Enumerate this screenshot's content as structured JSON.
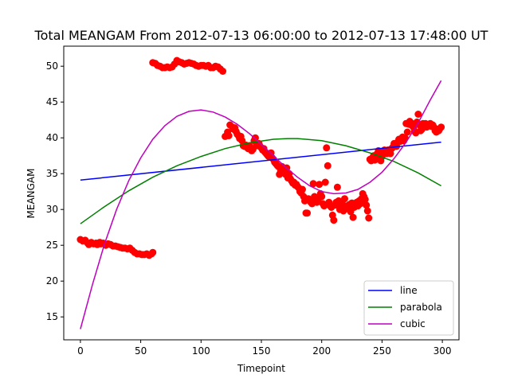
{
  "chart_data": {
    "type": "scatter",
    "title": "Total MEANGAM From 2012-07-13 06:00:00 to 2012-07-13 17:48:00 UT",
    "xlabel": "Timepoint",
    "ylabel": "MEANGAM",
    "xlim": [
      -13.8,
      313.8
    ],
    "ylim": [
      11.8,
      52.8
    ],
    "xticks": [
      0,
      50,
      100,
      150,
      200,
      250,
      300
    ],
    "yticks": [
      15,
      20,
      25,
      30,
      35,
      40,
      45,
      50
    ],
    "grid": false,
    "legend_position": "lower right",
    "points_color": "#ff0000",
    "scatter_points": [
      [
        0,
        25.8
      ],
      [
        2,
        25.6
      ],
      [
        4,
        25.7
      ],
      [
        6,
        25.3
      ],
      [
        7,
        25.1
      ],
      [
        9,
        25.4
      ],
      [
        11,
        25.2
      ],
      [
        13,
        25.3
      ],
      [
        14,
        25.1
      ],
      [
        16,
        25.4
      ],
      [
        17,
        25.2
      ],
      [
        19,
        25.3
      ],
      [
        21,
        25.0
      ],
      [
        23,
        25.2
      ],
      [
        25,
        25.1
      ],
      [
        27,
        24.9
      ],
      [
        29,
        24.9
      ],
      [
        31,
        24.8
      ],
      [
        33,
        24.7
      ],
      [
        35,
        24.6
      ],
      [
        37,
        24.6
      ],
      [
        39,
        24.5
      ],
      [
        41,
        24.6
      ],
      [
        43,
        24.3
      ],
      [
        45,
        24.0
      ],
      [
        47,
        23.8
      ],
      [
        49,
        23.8
      ],
      [
        51,
        23.7
      ],
      [
        53,
        23.7
      ],
      [
        55,
        23.8
      ],
      [
        57,
        23.6
      ],
      [
        59,
        23.8
      ],
      [
        60,
        24.0
      ],
      [
        60,
        50.5
      ],
      [
        62,
        50.4
      ],
      [
        64,
        50.1
      ],
      [
        66,
        50.0
      ],
      [
        68,
        49.8
      ],
      [
        70,
        49.8
      ],
      [
        72,
        49.9
      ],
      [
        74,
        49.8
      ],
      [
        76,
        49.9
      ],
      [
        78,
        50.3
      ],
      [
        80,
        50.8
      ],
      [
        82,
        50.6
      ],
      [
        84,
        50.5
      ],
      [
        86,
        50.3
      ],
      [
        88,
        50.4
      ],
      [
        90,
        50.5
      ],
      [
        92,
        50.4
      ],
      [
        94,
        50.3
      ],
      [
        96,
        50.1
      ],
      [
        98,
        50.0
      ],
      [
        100,
        50.1
      ],
      [
        102,
        50.1
      ],
      [
        104,
        50.0
      ],
      [
        106,
        50.1
      ],
      [
        108,
        49.8
      ],
      [
        110,
        49.8
      ],
      [
        112,
        50.0
      ],
      [
        114,
        49.9
      ],
      [
        116,
        49.6
      ],
      [
        118,
        49.3
      ],
      [
        120,
        40.2
      ],
      [
        122,
        40.8
      ],
      [
        123,
        40.3
      ],
      [
        124,
        41.8
      ],
      [
        126,
        41.5
      ],
      [
        127,
        41.2
      ],
      [
        128,
        41.4
      ],
      [
        129,
        40.9
      ],
      [
        130,
        40.5
      ],
      [
        131,
        40.3
      ],
      [
        132,
        39.9
      ],
      [
        133,
        40.2
      ],
      [
        134,
        39.6
      ],
      [
        135,
        38.9
      ],
      [
        136,
        38.8
      ],
      [
        137,
        39.0
      ],
      [
        138,
        38.7
      ],
      [
        139,
        38.5
      ],
      [
        140,
        38.9
      ],
      [
        141,
        38.6
      ],
      [
        142,
        38.2
      ],
      [
        143,
        38.4
      ],
      [
        144,
        39.6
      ],
      [
        145,
        40.0
      ],
      [
        146,
        39.0
      ],
      [
        147,
        38.9
      ],
      [
        148,
        39.2
      ],
      [
        149,
        38.8
      ],
      [
        150,
        38.6
      ],
      [
        151,
        38.3
      ],
      [
        152,
        38.5
      ],
      [
        153,
        38.0
      ],
      [
        154,
        37.8
      ],
      [
        155,
        37.6
      ],
      [
        156,
        37.4
      ],
      [
        157,
        37.7
      ],
      [
        158,
        37.9
      ],
      [
        159,
        37.2
      ],
      [
        160,
        37.0
      ],
      [
        161,
        36.6
      ],
      [
        162,
        36.4
      ],
      [
        163,
        36.2
      ],
      [
        164,
        36.0
      ],
      [
        165,
        34.9
      ],
      [
        166,
        35.3
      ],
      [
        167,
        36.0
      ],
      [
        168,
        35.6
      ],
      [
        169,
        35.1
      ],
      [
        170,
        34.9
      ],
      [
        171,
        35.8
      ],
      [
        172,
        34.4
      ],
      [
        173,
        35.0
      ],
      [
        174,
        34.3
      ],
      [
        175,
        34.0
      ],
      [
        176,
        33.7
      ],
      [
        177,
        33.8
      ],
      [
        178,
        33.4
      ],
      [
        179,
        33.5
      ],
      [
        180,
        33.2
      ],
      [
        181,
        33.0
      ],
      [
        182,
        32.5
      ],
      [
        183,
        32.3
      ],
      [
        184,
        32.8
      ],
      [
        185,
        31.8
      ],
      [
        186,
        31.2
      ],
      [
        187,
        29.5
      ],
      [
        188,
        29.5
      ],
      [
        189,
        31.5
      ],
      [
        190,
        31.3
      ],
      [
        191,
        31.0
      ],
      [
        192,
        30.8
      ],
      [
        193,
        33.6
      ],
      [
        194,
        31.8
      ],
      [
        195,
        31.5
      ],
      [
        196,
        31.0
      ],
      [
        197,
        31.2
      ],
      [
        198,
        33.5
      ],
      [
        199,
        32.2
      ],
      [
        200,
        31.8
      ],
      [
        201,
        30.8
      ],
      [
        202,
        30.5
      ],
      [
        203,
        33.8
      ],
      [
        204,
        38.6
      ],
      [
        205,
        36.1
      ],
      [
        206,
        31.0
      ],
      [
        207,
        30.5
      ],
      [
        208,
        30.3
      ],
      [
        209,
        29.2
      ],
      [
        210,
        28.5
      ],
      [
        211,
        30.6
      ],
      [
        212,
        31.0
      ],
      [
        213,
        33.1
      ],
      [
        214,
        31.2
      ],
      [
        215,
        30.0
      ],
      [
        216,
        30.4
      ],
      [
        217,
        30.8
      ],
      [
        218,
        29.8
      ],
      [
        219,
        31.5
      ],
      [
        220,
        30.2
      ],
      [
        221,
        30.5
      ],
      [
        222,
        30.1
      ],
      [
        223,
        30.7
      ],
      [
        224,
        29.7
      ],
      [
        225,
        30.9
      ],
      [
        226,
        28.9
      ],
      [
        227,
        30.3
      ],
      [
        228,
        30.6
      ],
      [
        229,
        31.0
      ],
      [
        230,
        30.5
      ],
      [
        231,
        31.2
      ],
      [
        232,
        30.8
      ],
      [
        233,
        31.5
      ],
      [
        234,
        32.2
      ],
      [
        235,
        31.8
      ],
      [
        236,
        31.4
      ],
      [
        237,
        30.6
      ],
      [
        238,
        29.8
      ],
      [
        239,
        28.8
      ],
      [
        240,
        37.0
      ],
      [
        241,
        36.8
      ],
      [
        242,
        37.2
      ],
      [
        243,
        37.5
      ],
      [
        244,
        36.9
      ],
      [
        245,
        37.0
      ],
      [
        246,
        37.8
      ],
      [
        247,
        38.2
      ],
      [
        248,
        37.6
      ],
      [
        249,
        36.8
      ],
      [
        250,
        37.4
      ],
      [
        251,
        38.0
      ],
      [
        252,
        38.3
      ],
      [
        253,
        38.0
      ],
      [
        254,
        37.8
      ],
      [
        255,
        38.3
      ],
      [
        256,
        38.0
      ],
      [
        257,
        37.8
      ],
      [
        258,
        38.5
      ],
      [
        259,
        38.7
      ],
      [
        260,
        39.2
      ],
      [
        261,
        39.0
      ],
      [
        262,
        38.8
      ],
      [
        263,
        39.4
      ],
      [
        264,
        39.8
      ],
      [
        265,
        39.5
      ],
      [
        266,
        39.9
      ],
      [
        267,
        40.1
      ],
      [
        268,
        39.6
      ],
      [
        269,
        40.0
      ],
      [
        270,
        42.0
      ],
      [
        271,
        40.8
      ],
      [
        272,
        41.9
      ],
      [
        273,
        42.3
      ],
      [
        274,
        41.8
      ],
      [
        275,
        42.0
      ],
      [
        276,
        41.5
      ],
      [
        277,
        40.9
      ],
      [
        278,
        40.7
      ],
      [
        279,
        42.2
      ],
      [
        280,
        43.3
      ],
      [
        281,
        41.8
      ],
      [
        282,
        41.0
      ],
      [
        283,
        41.2
      ],
      [
        284,
        42.0
      ],
      [
        285,
        41.6
      ],
      [
        286,
        42.0
      ],
      [
        287,
        41.5
      ],
      [
        288,
        41.7
      ],
      [
        289,
        41.9
      ],
      [
        290,
        42.0
      ],
      [
        291,
        41.6
      ],
      [
        292,
        41.8
      ],
      [
        293,
        41.5
      ],
      [
        294,
        41.0
      ],
      [
        295,
        40.8
      ],
      [
        296,
        41.2
      ],
      [
        297,
        41.0
      ],
      [
        298,
        41.3
      ],
      [
        299,
        41.5
      ]
    ],
    "fits": [
      {
        "name": "line",
        "color": "#0000ff",
        "x": [
          0,
          299
        ],
        "y": [
          34.1,
          39.4
        ]
      },
      {
        "name": "parabola",
        "color": "#008000",
        "x": [
          0,
          20,
          40,
          60,
          80,
          100,
          120,
          140,
          160,
          172,
          180,
          200,
          220,
          240,
          260,
          280,
          299
        ],
        "y": [
          28.0,
          30.4,
          32.6,
          34.5,
          36.1,
          37.4,
          38.5,
          39.3,
          39.8,
          39.9,
          39.9,
          39.6,
          38.9,
          37.9,
          36.7,
          35.1,
          33.3
        ]
      },
      {
        "name": "cubic",
        "color": "#bf00bf",
        "x": [
          0,
          10,
          20,
          30,
          40,
          50,
          60,
          70,
          80,
          90,
          100,
          110,
          120,
          130,
          140,
          150,
          160,
          170,
          180,
          190,
          200,
          210,
          220,
          230,
          240,
          250,
          260,
          270,
          280,
          290,
          299
        ],
        "y": [
          13.3,
          19.5,
          25.2,
          30.0,
          34.0,
          37.2,
          39.8,
          41.7,
          43.0,
          43.7,
          43.9,
          43.6,
          42.9,
          41.9,
          40.6,
          39.1,
          37.5,
          35.9,
          34.5,
          33.3,
          32.5,
          32.2,
          32.3,
          32.8,
          33.8,
          35.2,
          37.1,
          39.4,
          42.1,
          45.3,
          48.0
        ]
      }
    ],
    "legend": [
      "line",
      "parabola",
      "cubic"
    ]
  }
}
